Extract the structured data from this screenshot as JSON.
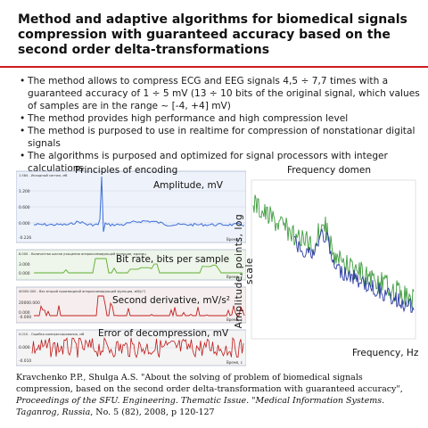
{
  "title": "Method and adaptive algorithms for biomedical signals compression with guaranteed accuracy based on the second order delta-transformations",
  "bullets": [
    "The method allows to compress ECG and EEG signals 4,5 ÷ 7,7 times with a guaranteed accuracy of 1 ÷ 5 mV (13 ÷ 10 bits of the original signal, which values of samples are in the range ~ [-4, +4] mV)",
    "The method provides high performance and high compression level",
    "The method is purposed to use in realtime for compression of nonstationar digital signals",
    "The algorithms is purposed and optimized for signal processors with integer calculations"
  ],
  "left_figure": {
    "title": "Principles of encoding",
    "panels": [
      {
        "overlay": "Amplitude, mV",
        "header": "1.584 - Исходный сигнал, мВ",
        "ticks": [
          "1.200",
          "0.600",
          "0.000",
          "-0.226"
        ],
        "time_label": "Время, с"
      },
      {
        "overlay": "Bit rate, bits per sample",
        "header": "8.000 - Количество шагов учащения аппроксимирующей функции, единиц",
        "ticks": [
          "3.000",
          "0.000"
        ],
        "time_label": "Время, с"
      },
      {
        "overlay": "Second derivative, mV/s²",
        "header": "40000.000 - Вес второй производной аппроксимирующей функции, мВ/(с²)",
        "ticks": [
          "20000.000",
          "0.000",
          "-0.000"
        ],
        "time_label": "Время, с"
      },
      {
        "overlay": "Error of decompression, mV",
        "header": "0.010 - Ошибка компрессирования, мВ",
        "ticks": [
          "0.000",
          "-0.010"
        ],
        "time_label": "Время, с"
      }
    ],
    "colors": {
      "signal": "#3b6fd8",
      "bitrate": "#5fae2e",
      "derivative": "#c02020",
      "error": "#c01a1a"
    }
  },
  "right_figure": {
    "title": "Frequency domen",
    "ylabel": "Amplitude, points, log scale",
    "xlabel": "Frequency, Hz",
    "colors": {
      "green": "#3f9b3f",
      "blue": "#2838a0"
    }
  },
  "reference": {
    "text": "Kravchenko P.P., Shulga A.S. \"About the solving of problem of biomedical signals compression, based on the second order delta-transformation with guaranteed accuracy\", ",
    "italic": "Proceedings of the SFU. Engineering. Thematic Issue. \"Medical Information Systems. Taganrog, Russia",
    "tail": ", No. 5 (82), 2008, p 120-127"
  },
  "accent_color": "#cf1b1b"
}
